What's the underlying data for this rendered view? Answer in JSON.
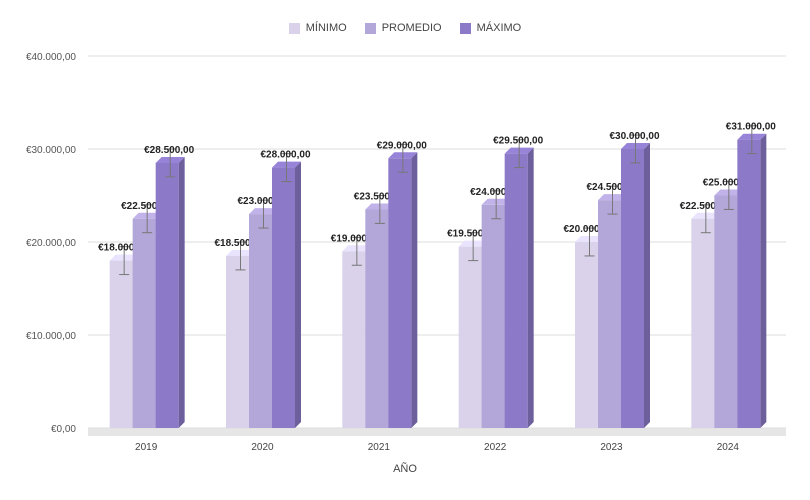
{
  "chart_data": {
    "type": "bar",
    "categories": [
      "2019",
      "2020",
      "2021",
      "2022",
      "2023",
      "2024"
    ],
    "series": [
      {
        "name": "MÍNIMO",
        "color": "#d9d2ea",
        "values": [
          18000,
          18500,
          19000,
          19500,
          20000,
          22500
        ]
      },
      {
        "name": "PROMEDIO",
        "color": "#b3a6d8",
        "values": [
          22500,
          23000,
          23500,
          24000,
          24500,
          25000
        ]
      },
      {
        "name": "MÁXIMO",
        "color": "#8c79c8",
        "values": [
          28500,
          28000,
          29000,
          29500,
          30000,
          31000
        ]
      }
    ],
    "data_labels": [
      [
        "€18.000,00",
        "€22.500,00",
        "€28.500,00"
      ],
      [
        "€18.500,00",
        "€23.000,00",
        "€28.000,00"
      ],
      [
        "€19.000,00",
        "€23.500,00",
        "€29.000,00"
      ],
      [
        "€19.500,00",
        "€24.000,00",
        "€29.500,00"
      ],
      [
        "€20.000,00",
        "€24.500,00",
        "€30.000,00"
      ],
      [
        "€22.500,00",
        "€25.000,00",
        "€31.000,00"
      ]
    ],
    "error_bar": 1500,
    "y_ticks": [
      0,
      10000,
      20000,
      30000,
      40000
    ],
    "y_tick_labels": [
      "€0,00",
      "€10.000,00",
      "€20.000,00",
      "€30.000,00",
      "€40.000,00"
    ],
    "ylim": [
      0,
      40000
    ],
    "xlabel": "AÑO",
    "ylabel": "",
    "legend_position": "top-center",
    "grid": true,
    "style": "3d-columns"
  }
}
